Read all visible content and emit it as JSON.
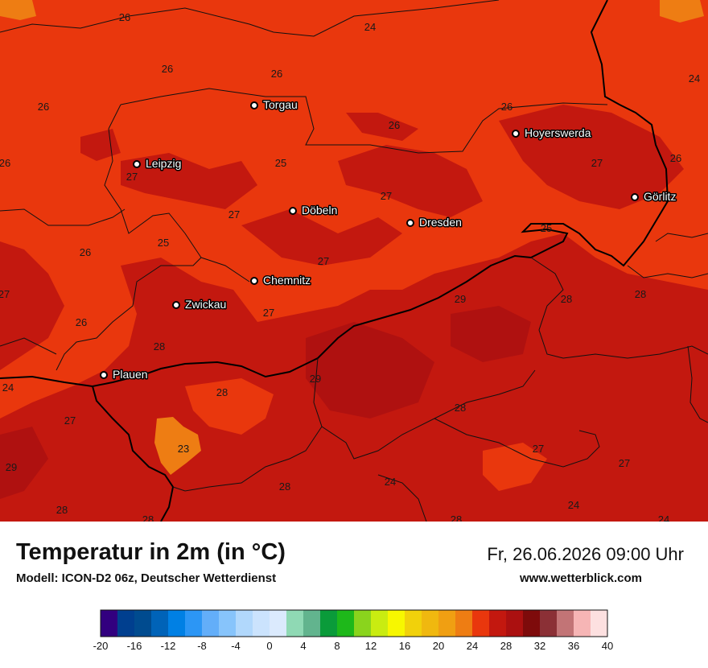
{
  "title": "Temperatur in 2m (in °C)",
  "model": "Modell: ICON-D2 06z, Deutscher Wetterdienst",
  "datetime": "Fr, 26.06.2026 09:00 Uhr",
  "website": "www.wetterblick.com",
  "cities": [
    {
      "name": "Torgau"
    },
    {
      "name": "Hoyerswerda"
    },
    {
      "name": "Leipzig"
    },
    {
      "name": "Görlitz"
    },
    {
      "name": "Döbeln"
    },
    {
      "name": "Dresden"
    },
    {
      "name": "Chemnitz"
    },
    {
      "name": "Zwickau"
    },
    {
      "name": "Plauen"
    }
  ],
  "temperature_labels": [
    "26",
    "24",
    "26",
    "26",
    "24",
    "26",
    "26",
    "26",
    "26",
    "27",
    "27",
    "25",
    "27",
    "26",
    "27",
    "25",
    "26",
    "25",
    "27",
    "27",
    "29",
    "28",
    "28",
    "27",
    "26",
    "27",
    "28",
    "24",
    "29",
    "28",
    "28",
    "27",
    "27",
    "29",
    "23",
    "28",
    "24",
    "28",
    "24",
    "28",
    "28",
    "24"
  ],
  "legend": {
    "tick_labels": [
      "-20",
      "-16",
      "-12",
      "-8",
      "-4",
      "0",
      "4",
      "8",
      "12",
      "16",
      "20",
      "24",
      "28",
      "32",
      "36",
      "40"
    ],
    "colors": [
      "#32007f",
      "#003f8f",
      "#004b8f",
      "#0063b8",
      "#0080e4",
      "#2c96f5",
      "#63aef9",
      "#87c4fb",
      "#b1d8fc",
      "#cbe3fd",
      "#dbeafd",
      "#8fd9b4",
      "#62b48e",
      "#0a9b3a",
      "#1eb81a",
      "#8ad41d",
      "#c9ec11",
      "#f7f700",
      "#f1d10b",
      "#f0b80f",
      "#f09f12",
      "#ee7d13",
      "#e9370d",
      "#c3180f",
      "#ab1010",
      "#7e0b0b",
      "#8b3036",
      "#c27476",
      "#f6b5b5",
      "#fde0e0"
    ]
  }
}
